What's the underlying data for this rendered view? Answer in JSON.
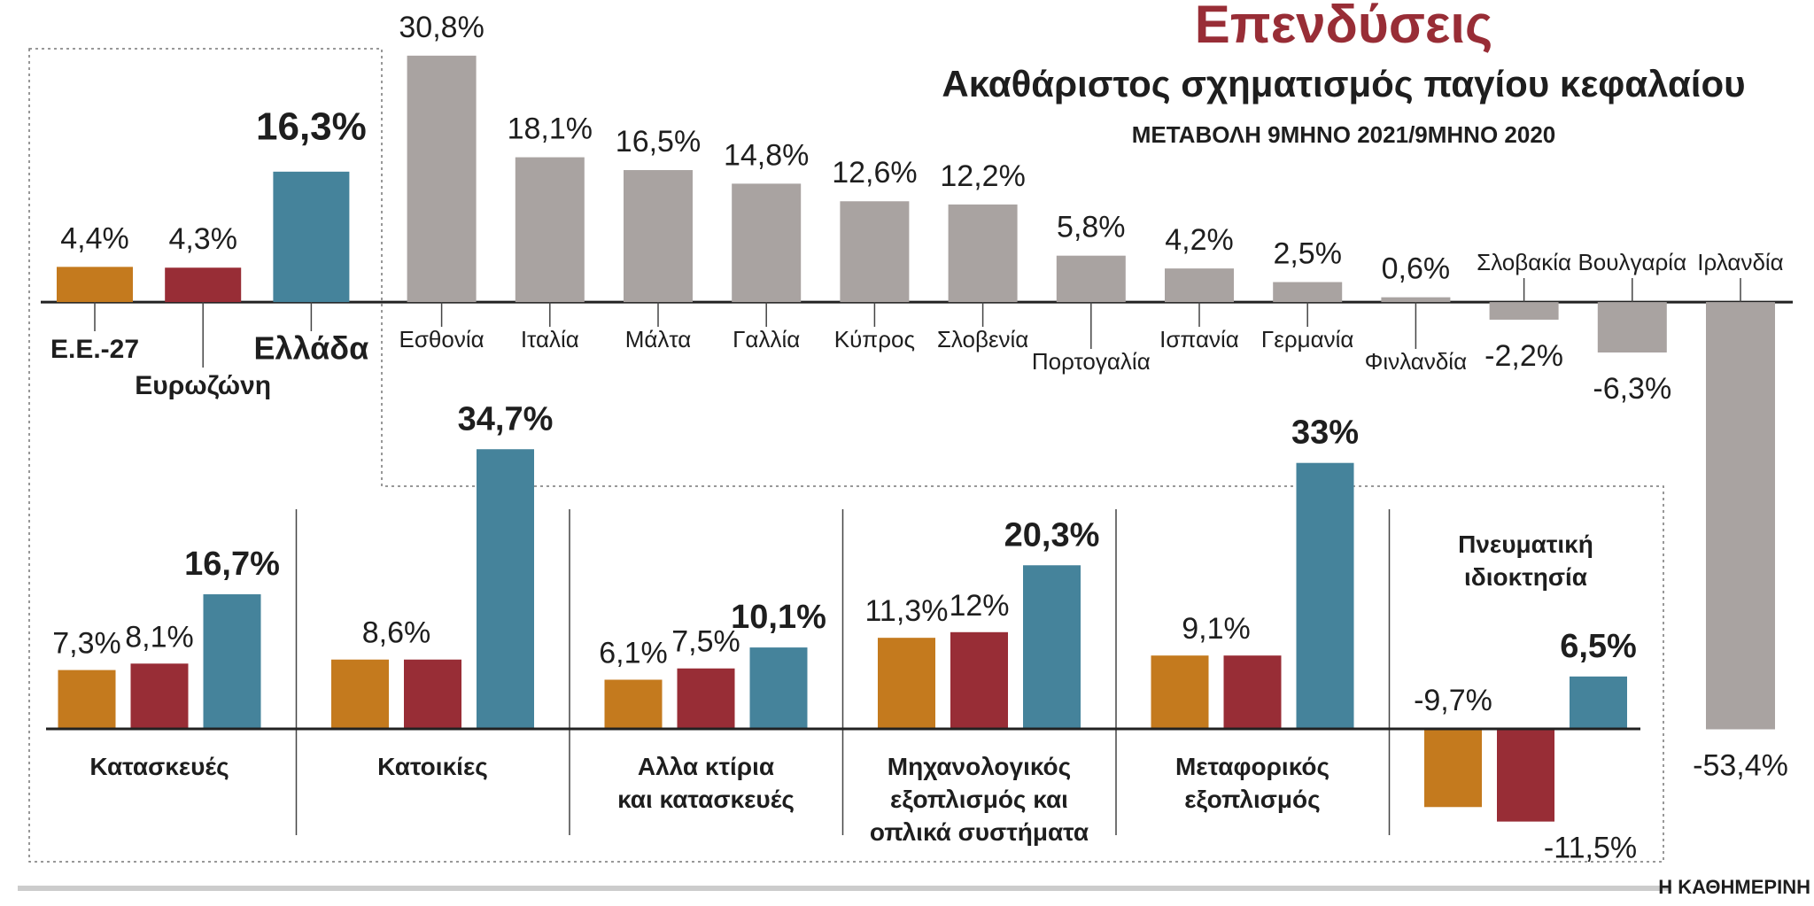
{
  "chart_data": [
    {
      "type": "bar",
      "title": "Επενδύσεις",
      "subtitle": "Ακαθάριστος σχηματισμός παγίου κεφαλαίου",
      "note": "ΜΕΤΑΒΟΛΗ 9ΜΗΝΟ 2021/9ΜΗΝΟ 2020",
      "categories": [
        "Ε.Ε.-27",
        "Ευρωζώνη",
        "Ελλάδα",
        "Εσθονία",
        "Ιταλία",
        "Μάλτα",
        "Γαλλία",
        "Κύπρος",
        "Σλοβενία",
        "Πορτογαλία",
        "Ισπανία",
        "Γερμανία",
        "Φινλανδία",
        "Σλοβακία",
        "Βουλγαρία",
        "Ιρλανδία"
      ],
      "values": [
        4.4,
        4.3,
        16.3,
        30.8,
        18.1,
        16.5,
        14.8,
        12.6,
        12.2,
        5.8,
        4.2,
        2.5,
        0.6,
        -2.2,
        -6.3,
        -53.4
      ],
      "value_labels": [
        "4,4%",
        "4,3%",
        "16,3%",
        "30,8%",
        "18,1%",
        "16,5%",
        "14,8%",
        "12,6%",
        "12,2%",
        "5,8%",
        "4,2%",
        "2,5%",
        "0,6%",
        "-2,2%",
        "-6,3%",
        "-53,4%"
      ],
      "colors": [
        "#c47a1e",
        "#982d36",
        "#45839b",
        "#a9a3a1",
        "#a9a3a1",
        "#a9a3a1",
        "#a9a3a1",
        "#a9a3a1",
        "#a9a3a1",
        "#a9a3a1",
        "#a9a3a1",
        "#a9a3a1",
        "#a9a3a1",
        "#a9a3a1",
        "#a9a3a1",
        "#a9a3a1"
      ],
      "ylim": [
        -56,
        32
      ]
    },
    {
      "type": "grouped_bar",
      "categories": [
        "Κατασκευές",
        "Κατοικίες",
        "Αλλα κτίρια\nκαι κατασκευές",
        "Μηχανολογικός\nεξοπλισμός και\nοπλικά συστήματα",
        "Μεταφορικός\nεξοπλισμός",
        "Πνευματική\nιδιοκτησία"
      ],
      "series": [
        {
          "color": "#c47a1e",
          "values": [
            7.3,
            8.6,
            6.1,
            11.3,
            9.1,
            -9.7
          ],
          "value_labels": [
            "7,3%",
            "8,6%",
            "6,1%",
            "11,3%",
            "9,1%",
            "-9,7%"
          ]
        },
        {
          "color": "#982d36",
          "values": [
            8.1,
            8.6,
            7.5,
            12,
            9.1,
            -11.5
          ],
          "value_labels": [
            "8,1%",
            null,
            "7,5%",
            "12%",
            null,
            "-11,5%"
          ]
        },
        {
          "color": "#45839b",
          "values": [
            16.7,
            34.7,
            10.1,
            20.3,
            33,
            6.5
          ],
          "value_labels": [
            "16,7%",
            "34,7%",
            "10,1%",
            "20,3%",
            "33%",
            "6,5%"
          ]
        }
      ],
      "ylim": [
        -14,
        36
      ]
    }
  ],
  "source": "Η ΚΑΘΗΜΕΡΙΝΗ"
}
